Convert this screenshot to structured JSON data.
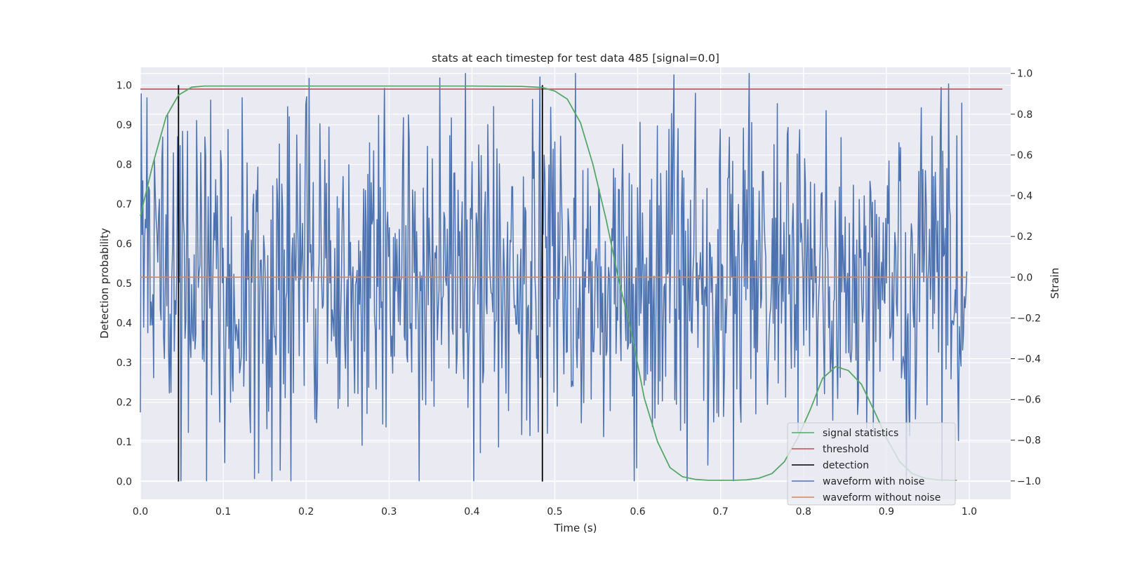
{
  "chart_data": {
    "type": "line",
    "title": "stats at each timestep for test data 485 [signal=0.0]",
    "xlabel": "Time (s)",
    "ylabel": "Detection probability",
    "y2label": "Strain",
    "xlim": [
      0.0,
      1.05
    ],
    "ylim": [
      -0.045,
      1.045
    ],
    "y2lim": [
      -1.09,
      1.03
    ],
    "x_ticks": [
      "0.0",
      "0.1",
      "0.2",
      "0.3",
      "0.4",
      "0.5",
      "0.6",
      "0.7",
      "0.8",
      "0.9",
      "1.0"
    ],
    "x_tick_values": [
      0.0,
      0.1,
      0.2,
      0.3,
      0.4,
      0.5,
      0.6,
      0.7,
      0.8,
      0.9,
      1.0
    ],
    "y_ticks": [
      "0.0",
      "0.1",
      "0.2",
      "0.3",
      "0.4",
      "0.5",
      "0.6",
      "0.7",
      "0.8",
      "0.9",
      "1.0"
    ],
    "y_tick_values": [
      0.0,
      0.1,
      0.2,
      0.3,
      0.4,
      0.5,
      0.6,
      0.7,
      0.8,
      0.9,
      1.0
    ],
    "y2_ticks": [
      "−1.0",
      "−0.8",
      "−0.6",
      "−0.4",
      "−0.2",
      "0.0",
      "0.2",
      "0.4",
      "0.6",
      "0.8",
      "1.0"
    ],
    "y2_tick_values": [
      -1.0,
      -0.8,
      -0.6,
      -0.4,
      -0.2,
      0.0,
      0.2,
      0.4,
      0.6,
      0.8,
      1.0
    ],
    "grid": true,
    "legend_position": "bottom-right",
    "series": [
      {
        "name": "signal statistics",
        "color": "#55a868",
        "axis": "left",
        "x": [
          0.0,
          0.015,
          0.031,
          0.046,
          0.062,
          0.077,
          0.1,
          0.2,
          0.3,
          0.4,
          0.46,
          0.485,
          0.5,
          0.515,
          0.531,
          0.546,
          0.562,
          0.577,
          0.593,
          0.608,
          0.624,
          0.639,
          0.654,
          0.67,
          0.685,
          0.7,
          0.716,
          0.731,
          0.746,
          0.762,
          0.777,
          0.793,
          0.808,
          0.823,
          0.839,
          0.854,
          0.87,
          0.885,
          0.9,
          0.916,
          0.931,
          0.947,
          0.962,
          0.977,
          0.985
        ],
        "values": [
          0.67,
          0.8,
          0.92,
          0.975,
          0.995,
          0.998,
          0.998,
          0.998,
          0.998,
          0.998,
          0.997,
          0.994,
          0.985,
          0.965,
          0.905,
          0.8,
          0.66,
          0.51,
          0.37,
          0.21,
          0.1,
          0.035,
          0.012,
          0.005,
          0.003,
          0.003,
          0.003,
          0.004,
          0.008,
          0.02,
          0.05,
          0.11,
          0.18,
          0.26,
          0.29,
          0.28,
          0.245,
          0.18,
          0.11,
          0.05,
          0.02,
          0.008,
          0.004,
          0.003,
          0.003
        ]
      },
      {
        "name": "threshold",
        "color": "#c44e52",
        "axis": "left",
        "x": [
          0.0,
          1.04
        ],
        "values": [
          0.99,
          0.99
        ]
      },
      {
        "name": "detection",
        "color": "#000000",
        "axis": "left",
        "x": [
          0.046,
          0.485
        ],
        "values": [
          1.0,
          1.0
        ]
      },
      {
        "name": "waveform with noise",
        "color": "#4c72b0",
        "axis": "right",
        "x_range": [
          0.0,
          0.997
        ],
        "value_range": [
          -1.0,
          1.0
        ]
      },
      {
        "name": "waveform without noise",
        "color": "#dd8452",
        "axis": "right",
        "x": [
          0.0,
          0.997
        ],
        "values": [
          0.0,
          0.0
        ]
      }
    ]
  }
}
